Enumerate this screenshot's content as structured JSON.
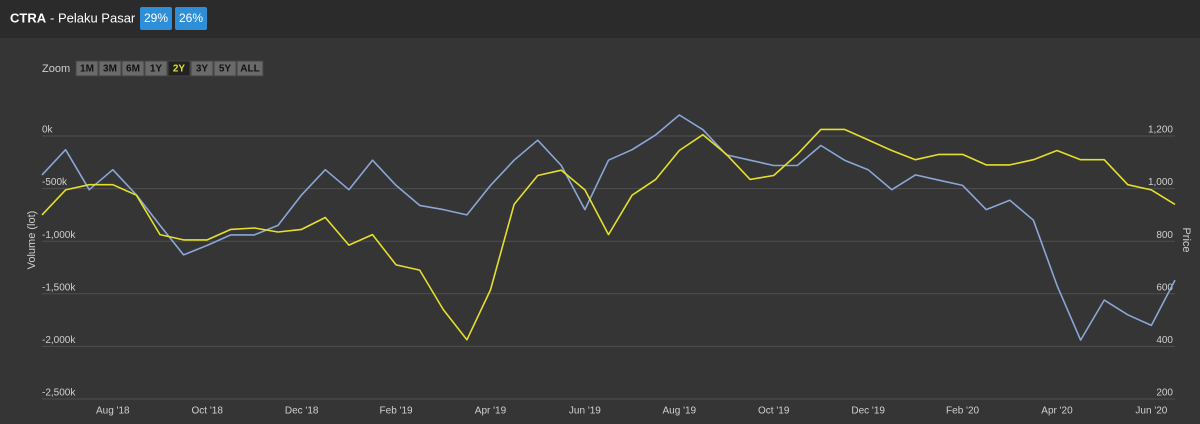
{
  "header": {
    "ticker": "CTRA",
    "title": "- Pelaku Pasar",
    "badges": [
      "29%",
      "26%"
    ]
  },
  "zoom": {
    "label": "Zoom",
    "buttons": [
      "1M",
      "3M",
      "6M",
      "1Y",
      "2Y",
      "3Y",
      "5Y",
      "ALL"
    ],
    "active": "2Y"
  },
  "chart_data": {
    "type": "line",
    "y_label": "Volume (lot)",
    "y2_label": "Price",
    "categories": [
      null,
      null,
      null,
      "Aug '18",
      null,
      null,
      null,
      "Oct '18",
      null,
      null,
      null,
      "Dec '18",
      null,
      null,
      null,
      "Feb '19",
      null,
      null,
      null,
      "Apr '19",
      null,
      null,
      null,
      "Jun '19",
      null,
      null,
      null,
      "Aug '19",
      null,
      null,
      null,
      "Oct '19",
      null,
      null,
      null,
      "Dec '19",
      null,
      null,
      null,
      "Feb '20",
      null,
      null,
      null,
      "Apr '20",
      null,
      null,
      null,
      "Jun '20",
      null
    ],
    "ylim": [
      -2500000,
      0
    ],
    "yticks": [
      {
        "value": 0,
        "label": "0k"
      },
      {
        "value": -500000,
        "label": "-500k"
      },
      {
        "value": -1000000,
        "label": "-1,000k"
      },
      {
        "value": -1500000,
        "label": "-1,500k"
      },
      {
        "value": -2000000,
        "label": "-2,000k"
      },
      {
        "value": -2500000,
        "label": "-2,500k"
      }
    ],
    "y2lim": [
      200,
      1200
    ],
    "y2ticks": [
      {
        "value": 1200,
        "label": "1,200"
      },
      {
        "value": 1000,
        "label": "1,000"
      },
      800,
      600,
      400,
      200
    ],
    "grid": true,
    "series": [
      {
        "name": "Volume",
        "color": "#8aa6d6",
        "axis": "y",
        "values": [
          -370000,
          -130000,
          -510000,
          -320000,
          -560000,
          -850000,
          -1130000,
          -1040000,
          -940000,
          -940000,
          -850000,
          -560000,
          -320000,
          -510000,
          -230000,
          -470000,
          -660000,
          -700000,
          -750000,
          -470000,
          -230000,
          -40000,
          -280000,
          -700000,
          -230000,
          -130000,
          10000,
          200000,
          60000,
          -180000,
          -230000,
          -280000,
          -280000,
          -90000,
          -230000,
          -320000,
          -510000,
          -370000,
          -420000,
          -470000,
          -700000,
          -610000,
          -800000,
          -1420000,
          -1940000,
          -1560000,
          -1700000,
          -1800000,
          -1370000
        ]
      },
      {
        "name": "Price",
        "color": "#e4df2b",
        "axis": "y2",
        "values": [
          900,
          995,
          1015,
          1015,
          975,
          825,
          805,
          805,
          845,
          850,
          835,
          845,
          890,
          785,
          825,
          710,
          690,
          540,
          425,
          615,
          940,
          1050,
          1070,
          995,
          825,
          975,
          1035,
          1145,
          1205,
          1130,
          1035,
          1050,
          1130,
          1225,
          1225,
          1185,
          1145,
          1110,
          1130,
          1130,
          1090,
          1090,
          1110,
          1145,
          1110,
          1110,
          1015,
          995,
          940
        ]
      }
    ]
  }
}
